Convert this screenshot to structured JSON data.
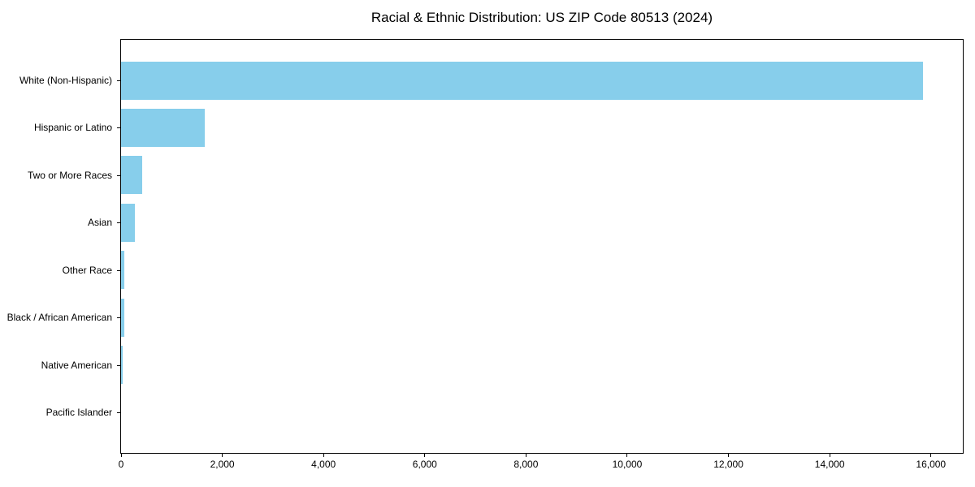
{
  "page": {
    "background": "#ffffff"
  },
  "chart_data": {
    "type": "bar",
    "orientation": "horizontal",
    "title": "Racial & Ethnic Distribution: US ZIP Code 80513 (2024)",
    "xlabel": "",
    "ylabel": "",
    "categories": [
      "White (Non-Hispanic)",
      "Hispanic or Latino",
      "Two or More Races",
      "Asian",
      "Other Race",
      "Black / African American",
      "Native American",
      "Pacific Islander"
    ],
    "values": [
      15840,
      1650,
      420,
      265,
      65,
      60,
      40,
      0
    ],
    "xlim": [
      0,
      16630
    ],
    "xticks": [
      {
        "value": 0,
        "label": "0"
      },
      {
        "value": 2000,
        "label": "2,000"
      },
      {
        "value": 4000,
        "label": "4,000"
      },
      {
        "value": 6000,
        "label": "6,000"
      },
      {
        "value": 8000,
        "label": "8,000"
      },
      {
        "value": 10000,
        "label": "10,000"
      },
      {
        "value": 12000,
        "label": "12,000"
      },
      {
        "value": 14000,
        "label": "14,000"
      },
      {
        "value": 16000,
        "label": "16,000"
      }
    ],
    "grid": false,
    "legend": false,
    "bar_color": "#87CEEB",
    "axis_color": "#000000",
    "text_color": "#000000"
  }
}
